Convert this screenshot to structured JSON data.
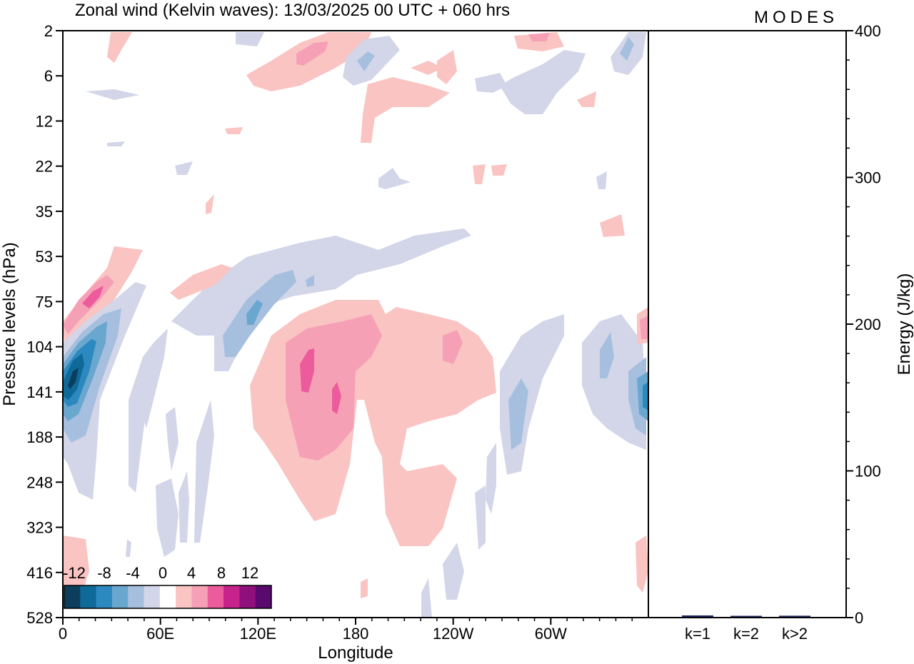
{
  "brand": "MODES",
  "chart_data": [
    {
      "type": "heatmap",
      "title": "Zonal wind (Kelvin waves):  13/03/2025  00 UTC  + 060 hrs",
      "xlabel": "Longitude",
      "ylabel": "Pressure levels (hPa)",
      "x_ticks": [
        "0",
        "60E",
        "120E",
        "180",
        "120W",
        "60W"
      ],
      "x_tick_values": [
        0,
        60,
        120,
        180,
        240,
        300
      ],
      "xlim": [
        0,
        360
      ],
      "y_ticks": [
        "2",
        "6",
        "12",
        "22",
        "35",
        "53",
        "75",
        "104",
        "141",
        "188",
        "248",
        "323",
        "416",
        "528"
      ],
      "y_scale": "categorical pressure levels, top = 2 hPa, bottom = 528 hPa",
      "colorbar": {
        "labels": [
          "-12",
          "-8",
          "-4",
          "0",
          "4",
          "8",
          "12"
        ],
        "levels": [
          -12,
          -10,
          -8,
          -6,
          -4,
          -2,
          2,
          4,
          6,
          8,
          10,
          12
        ],
        "colors": [
          "#0b3d5c",
          "#0f6a9a",
          "#2c89bf",
          "#6aa7cf",
          "#a6bfdf",
          "#d2d6e8",
          "#ffffff",
          "#f9c4c2",
          "#f6a0b6",
          "#ec5c9c",
          "#c8228c",
          "#8f107c",
          "#5a0a6e"
        ]
      },
      "features": [
        {
          "sign": "positive",
          "peak": 10,
          "lon": [
            5,
            25
          ],
          "pressure": "75"
        },
        {
          "sign": "negative",
          "peak": -12,
          "lon": [
            0,
            15
          ],
          "pressure": "104-188"
        },
        {
          "sign": "negative",
          "peak": -8,
          "lon": [
            95,
            135
          ],
          "pressure": "53-104"
        },
        {
          "sign": "positive",
          "peak": 8,
          "lon": [
            135,
            180
          ],
          "pressure": "104-248"
        },
        {
          "sign": "positive",
          "peak": 6,
          "lon": [
            230,
            255
          ],
          "pressure": "104-141"
        },
        {
          "sign": "negative",
          "peak": -10,
          "lon": [
            345,
            360
          ],
          "pressure": "104-188"
        },
        {
          "sign": "negative",
          "peak": -6,
          "lon": [
            270,
            285
          ],
          "pressure": "141-188"
        },
        {
          "sign": "positive",
          "peak": 6,
          "lon": [
            145,
            165
          ],
          "pressure": "2-6"
        },
        {
          "sign": "negative",
          "peak": -6,
          "lon": [
            180,
            195
          ],
          "pressure": "2-6"
        }
      ],
      "grid": false
    },
    {
      "type": "bar",
      "categories": [
        "k=1",
        "k=2",
        "k>2"
      ],
      "values": [
        1.0,
        0.4,
        0.8
      ],
      "ylabel": "Energy (J/kg)",
      "ylim": [
        0,
        400
      ],
      "y_ticks": [
        0,
        100,
        200,
        300,
        400
      ],
      "y_axis_side": "right",
      "bar_color": "#1f2a6b"
    }
  ]
}
